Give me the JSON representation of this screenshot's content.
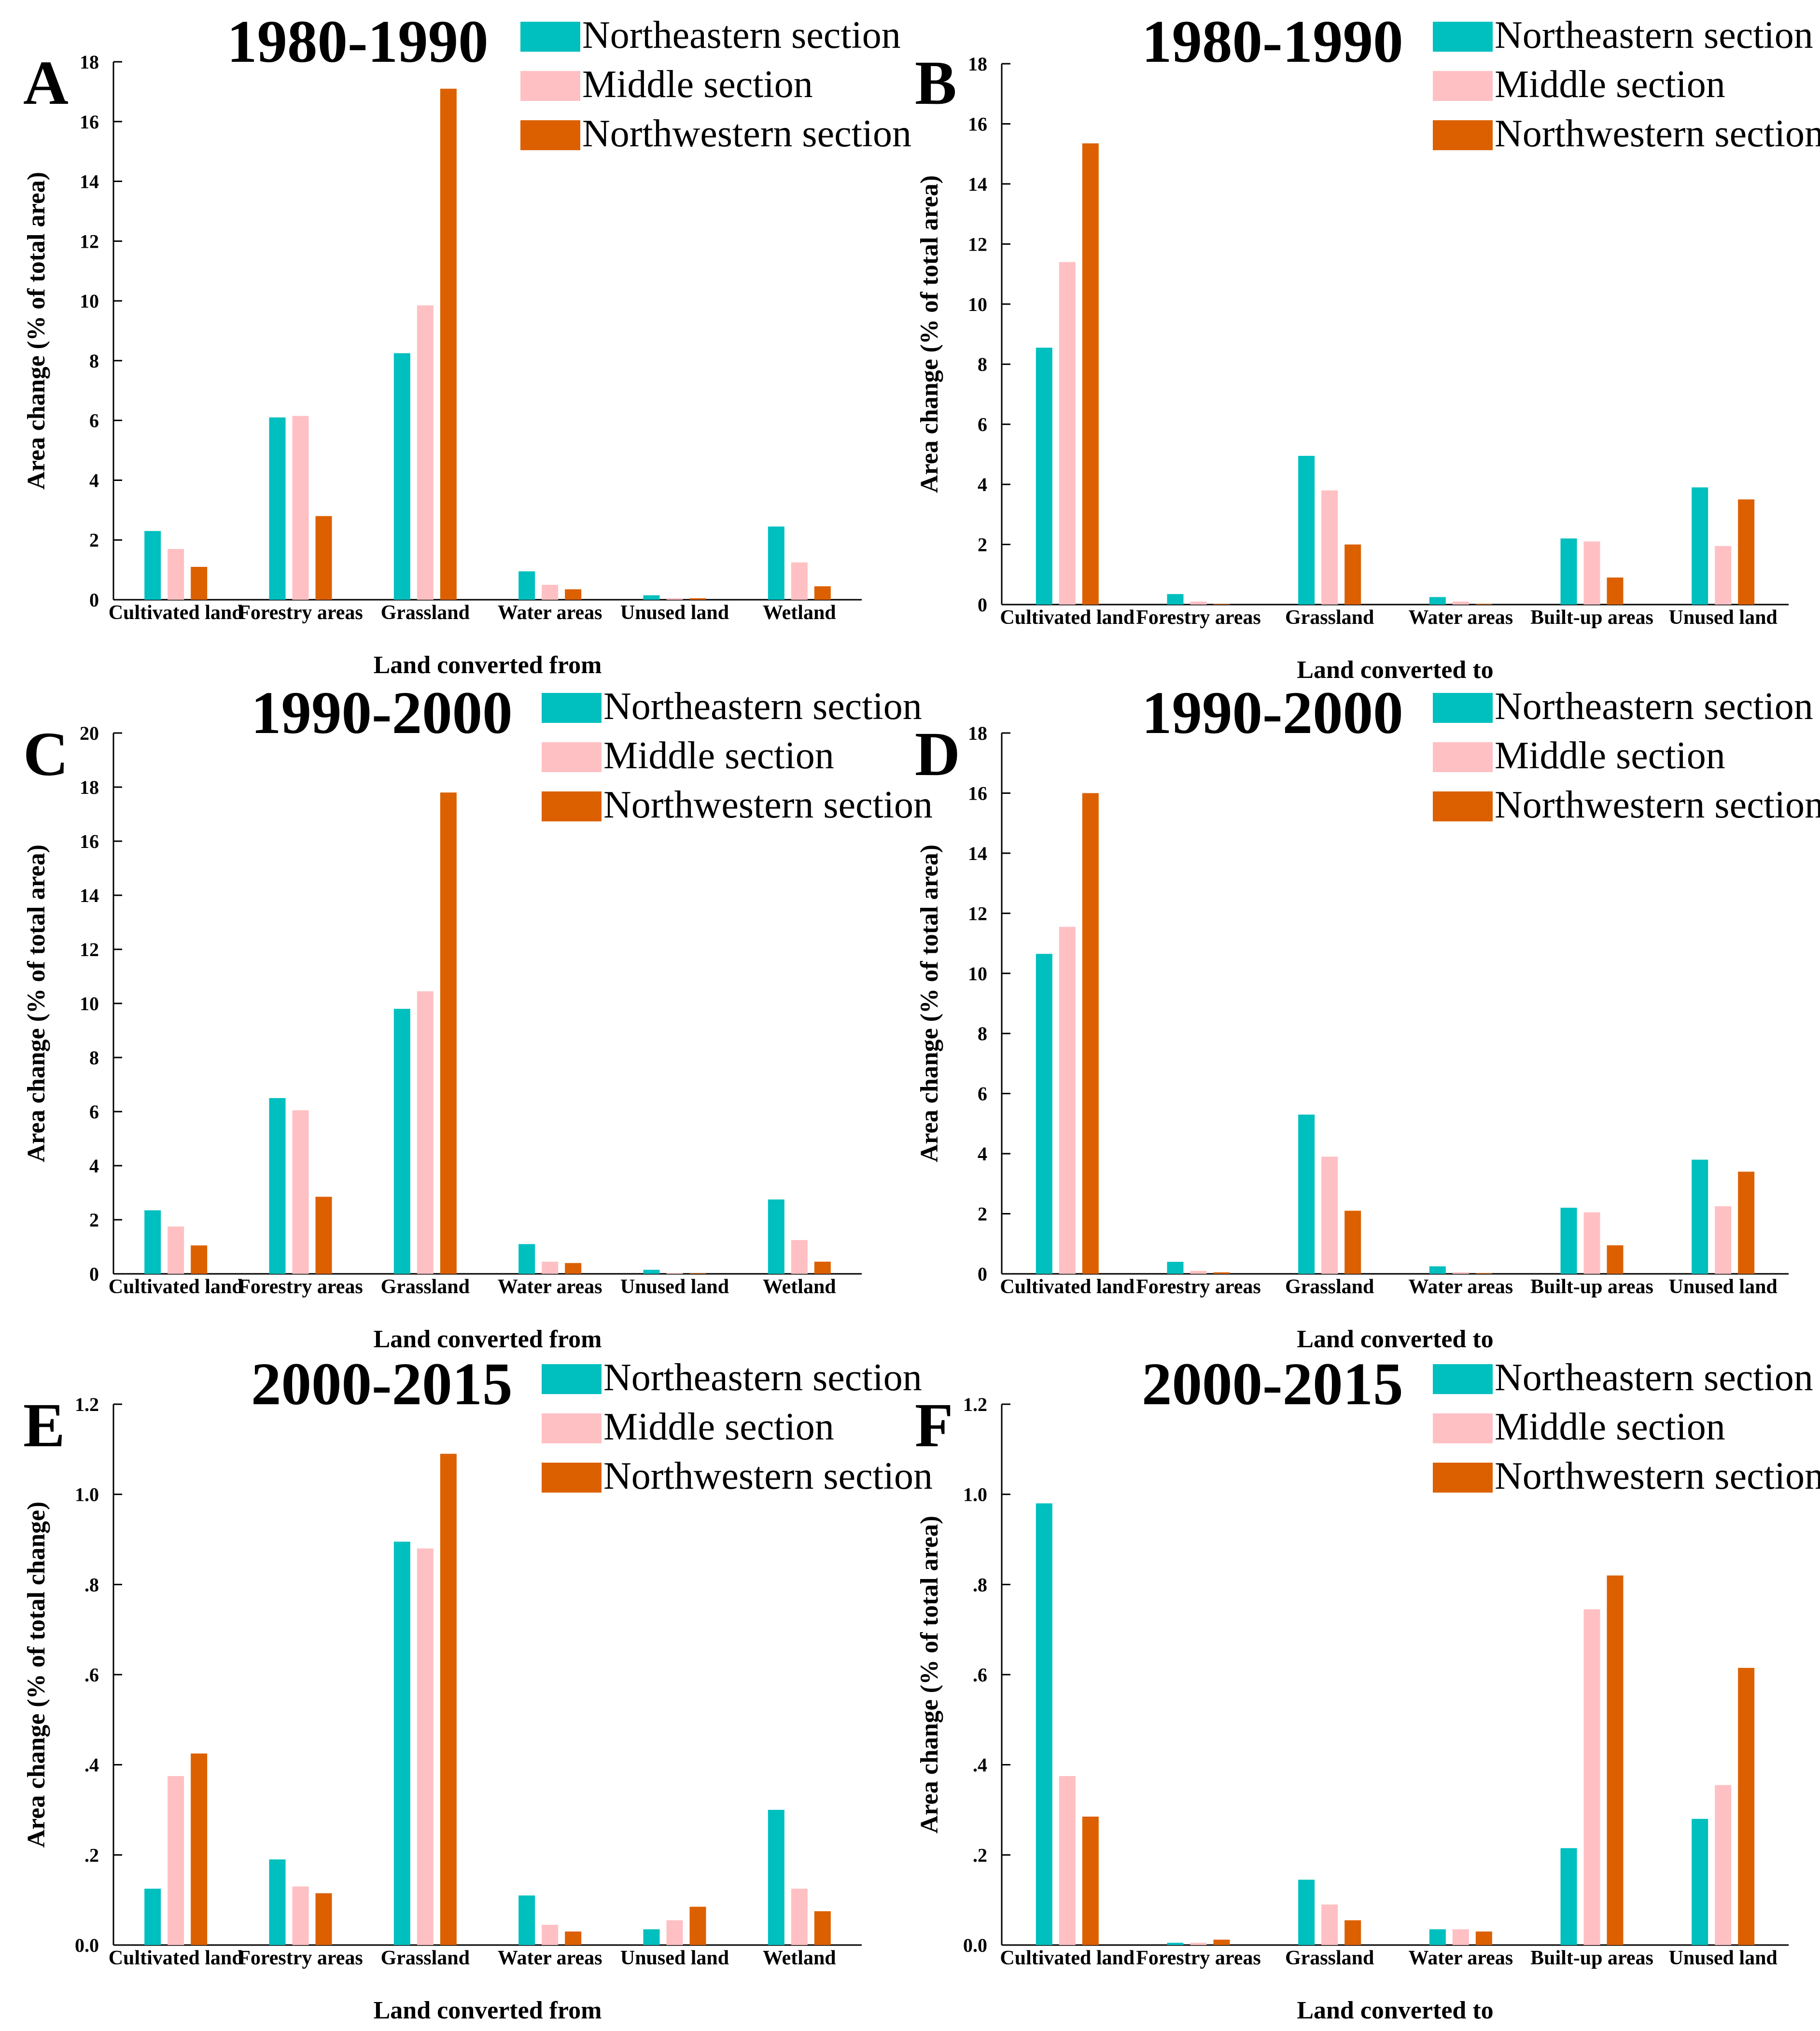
{
  "colors": {
    "northeastern": "#00BFBF",
    "middle": "#FFC0C3",
    "northwestern": "#DC6000",
    "axis": "#000000"
  },
  "series_names": [
    "Northeastern section",
    "Middle section",
    "Northwestern section"
  ],
  "chart_data": [
    {
      "type": "bar",
      "panel": "A",
      "title": "1980-1990",
      "xlabel": "Land converted from",
      "ylabel": "Area change (% of total area)",
      "ylim": [
        0,
        18
      ],
      "yticks": [
        "0",
        "2",
        "4",
        "6",
        "8",
        "10",
        "12",
        "14",
        "16",
        "18"
      ],
      "categories": [
        "Cultivated land",
        "Forestry areas",
        "Grassland",
        "Water areas",
        "Unused land",
        "Wetland"
      ],
      "legend_position": "top-right",
      "grid": false,
      "series": [
        {
          "name": "Northeastern section",
          "values": [
            2.3,
            6.1,
            8.25,
            0.95,
            0.15,
            2.45
          ]
        },
        {
          "name": "Middle section",
          "values": [
            1.7,
            6.15,
            9.85,
            0.5,
            0.05,
            1.25
          ]
        },
        {
          "name": "Northwestern section",
          "values": [
            1.1,
            2.8,
            17.1,
            0.35,
            0.05,
            0.45
          ]
        }
      ]
    },
    {
      "type": "bar",
      "panel": "B",
      "title": "1980-1990",
      "xlabel": "Land converted to",
      "ylabel": "Area change (% of total area)",
      "ylim": [
        0,
        18
      ],
      "yticks": [
        "0",
        "2",
        "4",
        "6",
        "8",
        "10",
        "12",
        "14",
        "16",
        "18"
      ],
      "categories": [
        "Cultivated land",
        "Forestry areas",
        "Grassland",
        "Water areas",
        "Built-up areas",
        "Unused land"
      ],
      "legend_position": "top-right",
      "grid": false,
      "series": [
        {
          "name": "Northeastern section",
          "values": [
            8.55,
            0.35,
            4.95,
            0.25,
            2.2,
            3.9
          ]
        },
        {
          "name": "Middle section",
          "values": [
            11.4,
            0.1,
            3.8,
            0.1,
            2.1,
            1.95
          ]
        },
        {
          "name": "Northwestern section",
          "values": [
            15.35,
            0.02,
            2.0,
            0.02,
            0.9,
            3.5
          ]
        }
      ]
    },
    {
      "type": "bar",
      "panel": "C",
      "title": "1990-2000",
      "xlabel": "Land converted from",
      "ylabel": "Area change (% of total area)",
      "ylim": [
        0,
        20
      ],
      "yticks": [
        "0",
        "2",
        "4",
        "6",
        "8",
        "10",
        "12",
        "14",
        "16",
        "18",
        "20"
      ],
      "categories": [
        "Cultivated land",
        "Forestry areas",
        "Grassland",
        "Water areas",
        "Unused land",
        "Wetland"
      ],
      "legend_position": "top-right",
      "grid": false,
      "series": [
        {
          "name": "Northeastern section",
          "values": [
            2.35,
            6.5,
            9.8,
            1.1,
            0.15,
            2.75
          ]
        },
        {
          "name": "Middle section",
          "values": [
            1.75,
            6.05,
            10.45,
            0.45,
            0.03,
            1.25
          ]
        },
        {
          "name": "Northwestern section",
          "values": [
            1.05,
            2.85,
            17.8,
            0.4,
            0.02,
            0.45
          ]
        }
      ]
    },
    {
      "type": "bar",
      "panel": "D",
      "title": "1990-2000",
      "xlabel": "Land converted to",
      "ylabel": "Area change (% of total area)",
      "ylim": [
        0,
        18
      ],
      "yticks": [
        "0",
        "2",
        "4",
        "6",
        "8",
        "10",
        "12",
        "14",
        "16",
        "18"
      ],
      "categories": [
        "Cultivated land",
        "Forestry areas",
        "Grassland",
        "Water areas",
        "Built-up areas",
        "Unused land"
      ],
      "legend_position": "top-right",
      "grid": false,
      "series": [
        {
          "name": "Northeastern section",
          "values": [
            10.65,
            0.4,
            5.3,
            0.25,
            2.2,
            3.8
          ]
        },
        {
          "name": "Middle section",
          "values": [
            11.55,
            0.1,
            3.9,
            0.05,
            2.05,
            2.25
          ]
        },
        {
          "name": "Northwestern section",
          "values": [
            16.0,
            0.05,
            2.1,
            0.02,
            0.95,
            3.4
          ]
        }
      ]
    },
    {
      "type": "bar",
      "panel": "E",
      "title": "2000-2015",
      "xlabel": "Land converted from",
      "ylabel": "Area change (% of total change)",
      "ylim": [
        0,
        1.2
      ],
      "yticks": [
        "0.0",
        ".2",
        ".4",
        ".6",
        ".8",
        "1.0",
        "1.2"
      ],
      "categories": [
        "Cultivated land",
        "Forestry areas",
        "Grassland",
        "Water areas",
        "Unused land",
        "Wetland"
      ],
      "legend_position": "top-right",
      "grid": false,
      "series": [
        {
          "name": "Northeastern section",
          "values": [
            0.125,
            0.19,
            0.895,
            0.11,
            0.035,
            0.3
          ]
        },
        {
          "name": "Middle section",
          "values": [
            0.375,
            0.13,
            0.88,
            0.045,
            0.055,
            0.125
          ]
        },
        {
          "name": "Northwestern section",
          "values": [
            0.425,
            0.115,
            1.09,
            0.03,
            0.085,
            0.075
          ]
        }
      ]
    },
    {
      "type": "bar",
      "panel": "F",
      "title": "2000-2015",
      "xlabel": "Land converted to",
      "ylabel": "Area change (% of total area)",
      "ylim": [
        0,
        1.2
      ],
      "yticks": [
        "0.0",
        ".2",
        ".4",
        ".6",
        ".8",
        "1.0",
        "1.2"
      ],
      "categories": [
        "Cultivated land",
        "Forestry areas",
        "Grassland",
        "Water areas",
        "Built-up areas",
        "Unused land"
      ],
      "legend_position": "top-right",
      "grid": false,
      "series": [
        {
          "name": "Northeastern section",
          "values": [
            0.98,
            0.005,
            0.145,
            0.035,
            0.215,
            0.28
          ]
        },
        {
          "name": "Middle section",
          "values": [
            0.375,
            0.005,
            0.09,
            0.035,
            0.745,
            0.355
          ]
        },
        {
          "name": "Northwestern section",
          "values": [
            0.285,
            0.012,
            0.055,
            0.03,
            0.82,
            0.615
          ]
        }
      ]
    }
  ]
}
